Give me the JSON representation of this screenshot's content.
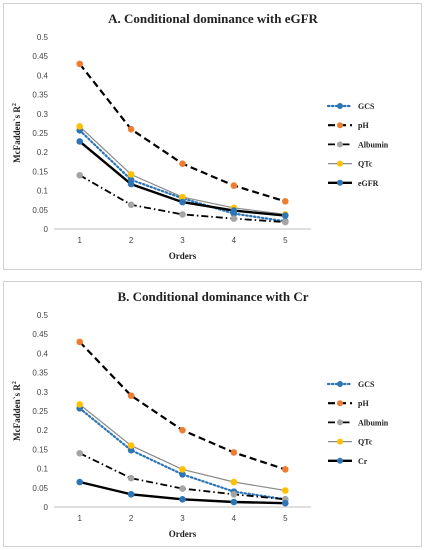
{
  "chart_data": [
    {
      "type": "line",
      "title": "A. Conditional dominance with eGFR",
      "xlabel": "Orders",
      "ylabel": "McFadden`s R",
      "ylabel_sup": "2",
      "ylim": [
        0,
        0.5
      ],
      "yticks": [
        "0",
        "0.05",
        "0.1",
        "0.15",
        "0.2",
        "0.25",
        "0.3",
        "0.35",
        "0.4",
        "0.45",
        "0.5"
      ],
      "x": [
        1,
        2,
        3,
        4,
        5
      ],
      "xtick_labels": [
        "1",
        "2",
        "3",
        "4",
        "5"
      ],
      "grid": false,
      "legend_position": "right",
      "series": [
        {
          "name": "GCS",
          "values": [
            0.257,
            0.128,
            0.08,
            0.04,
            0.02
          ],
          "color": "#2e75b6",
          "marker_color": "#2e75b6",
          "style": "dotted"
        },
        {
          "name": "pH",
          "values": [
            0.43,
            0.26,
            0.17,
            0.113,
            0.072
          ],
          "color": "#000000",
          "marker_color": "#ed7d31",
          "style": "dashed"
        },
        {
          "name": "Albumin",
          "values": [
            0.14,
            0.063,
            0.038,
            0.027,
            0.018
          ],
          "color": "#000000",
          "marker_color": "#a5a5a5",
          "style": "dashdot"
        },
        {
          "name": "QTc",
          "values": [
            0.267,
            0.142,
            0.083,
            0.055,
            0.038
          ],
          "color": "#8a8a8a",
          "marker_color": "#ffc000",
          "style": "solid-thin"
        },
        {
          "name": "eGFR",
          "values": [
            0.228,
            0.117,
            0.07,
            0.048,
            0.035
          ],
          "color": "#000000",
          "marker_color": "#2e75b6",
          "style": "solid-thick"
        }
      ]
    },
    {
      "type": "line",
      "title": "B. Conditional dominance with Cr",
      "xlabel": "Orders",
      "ylabel": "McFadden`s R",
      "ylabel_sup": "2",
      "ylim": [
        0,
        0.5
      ],
      "yticks": [
        "0",
        "0.05",
        "0.1",
        "0.15",
        "0.2",
        "0.25",
        "0.3",
        "0.35",
        "0.4",
        "0.45",
        "0.5"
      ],
      "x": [
        1,
        2,
        3,
        4,
        5
      ],
      "xtick_labels": [
        "1",
        "2",
        "3",
        "4",
        "5"
      ],
      "grid": false,
      "legend_position": "right",
      "series": [
        {
          "name": "GCS",
          "values": [
            0.257,
            0.148,
            0.085,
            0.04,
            0.02
          ],
          "color": "#2e75b6",
          "marker_color": "#2e75b6",
          "style": "dotted"
        },
        {
          "name": "pH",
          "values": [
            0.43,
            0.29,
            0.2,
            0.142,
            0.098
          ],
          "color": "#000000",
          "marker_color": "#ed7d31",
          "style": "dashed"
        },
        {
          "name": "Albumin",
          "values": [
            0.14,
            0.075,
            0.048,
            0.033,
            0.02
          ],
          "color": "#000000",
          "marker_color": "#a5a5a5",
          "style": "dashdot"
        },
        {
          "name": "QTc",
          "values": [
            0.267,
            0.16,
            0.098,
            0.065,
            0.043
          ],
          "color": "#8a8a8a",
          "marker_color": "#ffc000",
          "style": "solid-thin"
        },
        {
          "name": "Cr",
          "values": [
            0.065,
            0.033,
            0.02,
            0.013,
            0.01
          ],
          "color": "#000000",
          "marker_color": "#2e75b6",
          "style": "solid-thick"
        }
      ]
    }
  ]
}
